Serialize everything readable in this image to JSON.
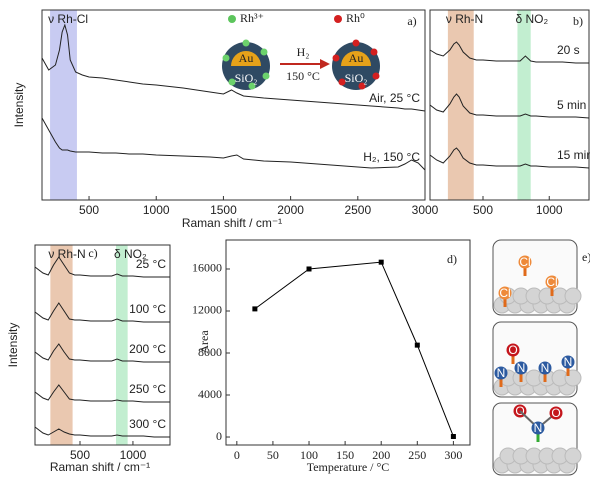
{
  "chart_data": [
    {
      "type": "line",
      "panel_label": "a)",
      "x_label": "Raman shift / cm⁻¹",
      "y_label": "Intensity",
      "xlim": [
        150,
        3000
      ],
      "ylim": [
        0,
        190
      ],
      "xticks": [
        500,
        1000,
        1500,
        2000,
        2500,
        3000
      ],
      "bands": [
        {
          "label": "ν Rh-Cl",
          "from": 210,
          "to": 410,
          "color": "#c8cbf2"
        }
      ],
      "x": [
        150,
        200,
        250,
        280,
        300,
        320,
        340,
        360,
        400,
        450,
        500,
        600,
        700,
        800,
        900,
        1000,
        1200,
        1400,
        1500,
        1560,
        1600,
        1650,
        1800,
        2000,
        2200,
        2400,
        2600,
        2800,
        2850,
        2900,
        2950,
        3000
      ],
      "series": [
        {
          "name": "Air, 25 °C",
          "color": "#222222",
          "values": [
            142,
            130,
            135,
            150,
            168,
            175,
            165,
            140,
            128,
            125,
            123,
            122,
            120,
            118,
            116,
            115,
            112,
            108,
            106,
            110,
            107,
            104,
            102,
            100,
            98,
            96,
            94,
            92,
            91,
            91,
            90,
            89
          ]
        },
        {
          "name": "H₂, 150 °C",
          "color": "#222222",
          "values": [
            82,
            70,
            58,
            52,
            50,
            50,
            50,
            49,
            48,
            48,
            48,
            47,
            47,
            46,
            46,
            45,
            44,
            43,
            42,
            44,
            45,
            41,
            39,
            38,
            36,
            34,
            32,
            33,
            36,
            40,
            37,
            30
          ]
        }
      ],
      "inset": {
        "legend": [
          "Rh³⁺",
          "Rh⁰"
        ],
        "arrow_top": "H₂",
        "arrow_bottom": "150 °C",
        "core": "Au",
        "shell": "SiO₂"
      }
    },
    {
      "type": "line",
      "panel_label": "b)",
      "xlim": [
        100,
        1300
      ],
      "ylim": [
        0,
        190
      ],
      "xticks": [
        500,
        1000
      ],
      "bands": [
        {
          "label": "ν Rh-N",
          "from": 235,
          "to": 430,
          "color": "#eac8b0"
        },
        {
          "label": "δ NO₂",
          "from": 760,
          "to": 860,
          "color": "#c2eed0"
        }
      ],
      "x": [
        100,
        150,
        200,
        250,
        280,
        300,
        320,
        350,
        400,
        450,
        500,
        600,
        700,
        780,
        820,
        860,
        900,
        1000,
        1100,
        1200,
        1300
      ],
      "series": [
        {
          "name": "20 s",
          "color": "#222222",
          "values": [
            150,
            146,
            144,
            150,
            156,
            158,
            155,
            148,
            142,
            140,
            140,
            139,
            139,
            139,
            144,
            139,
            138,
            138,
            138,
            137,
            137
          ]
        },
        {
          "name": "5 min",
          "color": "#222222",
          "values": [
            95,
            90,
            88,
            96,
            103,
            106,
            103,
            94,
            87,
            85,
            85,
            84,
            84,
            84,
            86,
            84,
            84,
            83,
            83,
            83,
            82
          ]
        },
        {
          "name": "15 min",
          "color": "#222222",
          "values": [
            45,
            40,
            37,
            44,
            50,
            52,
            49,
            42,
            37,
            35,
            35,
            34,
            34,
            34,
            36,
            34,
            34,
            33,
            33,
            33,
            32
          ]
        }
      ]
    },
    {
      "type": "line",
      "panel_label": "c)",
      "x_label": "Raman shift / cm⁻¹",
      "y_label": "Intensity",
      "xlim": [
        75,
        1350
      ],
      "ylim": [
        0,
        200
      ],
      "xticks": [
        500,
        1000
      ],
      "bands": [
        {
          "label": "ν Rh-N",
          "from": 220,
          "to": 430,
          "color": "#eac8b0"
        },
        {
          "label": "δ NO₂",
          "from": 840,
          "to": 950,
          "color": "#c2eed0"
        }
      ],
      "x": [
        75,
        150,
        200,
        250,
        300,
        350,
        400,
        450,
        500,
        600,
        700,
        800,
        850,
        900,
        1000,
        1100,
        1200,
        1350
      ],
      "series": [
        {
          "name": "25 °C",
          "color": "#222222",
          "values": [
            178,
            172,
            170,
            180,
            188,
            180,
            172,
            170,
            170,
            169,
            169,
            169,
            171,
            169,
            169,
            168,
            168,
            168
          ]
        },
        {
          "name": "100 °C",
          "color": "#222222",
          "values": [
            133,
            127,
            125,
            134,
            142,
            134,
            126,
            125,
            125,
            124,
            124,
            124,
            126,
            124,
            124,
            123,
            123,
            123
          ]
        },
        {
          "name": "200 °C",
          "color": "#222222",
          "values": [
            93,
            87,
            85,
            94,
            101,
            93,
            86,
            85,
            85,
            84,
            84,
            84,
            86,
            84,
            84,
            83,
            83,
            83
          ]
        },
        {
          "name": "250 °C",
          "color": "#222222",
          "values": [
            53,
            47,
            45,
            53,
            60,
            53,
            46,
            45,
            45,
            44,
            44,
            44,
            45,
            44,
            44,
            43,
            43,
            43
          ]
        },
        {
          "name": "300 °C",
          "color": "#222222",
          "values": [
            18,
            12,
            10,
            13,
            16,
            13,
            11,
            10,
            10,
            9,
            9,
            9,
            10,
            9,
            9,
            9,
            8,
            8
          ]
        }
      ]
    },
    {
      "type": "line",
      "markers": true,
      "panel_label": "d)",
      "x_label": "Temperature / °C",
      "y_label": "Area",
      "xlim": [
        -15,
        323
      ],
      "ylim": [
        -760,
        18760
      ],
      "xticks": [
        0,
        50,
        100,
        150,
        200,
        250,
        300
      ],
      "yticks": [
        0,
        4000,
        8000,
        12000,
        16000
      ],
      "x": [
        25,
        100,
        200,
        250,
        300
      ],
      "series": [
        {
          "color": "#000000",
          "values": [
            12200,
            16000,
            16650,
            8750,
            50
          ]
        }
      ]
    }
  ],
  "panel_e": {
    "label": "e)",
    "scenes": [
      [
        "Cl",
        "Cl",
        "Cl"
      ],
      [
        "O",
        "N",
        "N",
        "N",
        "N"
      ],
      [
        "O",
        "N",
        "O"
      ]
    ]
  }
}
